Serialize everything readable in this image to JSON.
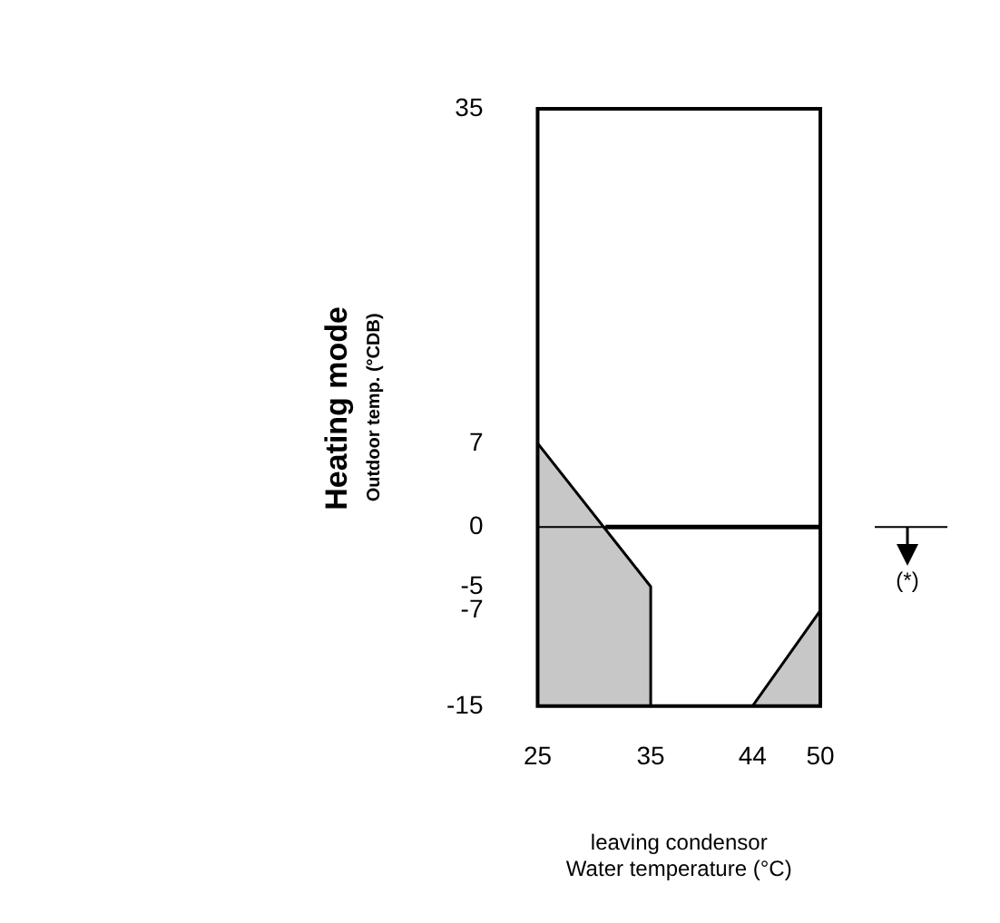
{
  "chart_data": {
    "type": "line",
    "title": "Heating mode",
    "ylabel": "Outdoor temp. (°CDB)",
    "xlabel": "leaving condensor\nWater temperature (°C)",
    "xlim": [
      25,
      50
    ],
    "ylim": [
      -15,
      35
    ],
    "xticks": [
      25,
      35,
      44,
      50
    ],
    "yticks": [
      35,
      7,
      0,
      -5,
      -7,
      -15
    ],
    "marker": "none",
    "series": [
      {
        "type": "area",
        "color": "#000000",
        "x": [
          25,
          25,
          35,
          35
        ],
        "values": [
          -15,
          7,
          -5,
          -15
        ]
      },
      {
        "type": "area",
        "color": "#000000",
        "x": [
          44,
          50,
          50
        ],
        "values": [
          -15,
          -7,
          -15
        ]
      },
      {
        "color": "#000000",
        "x": [
          31,
          50
        ],
        "values": [
          0,
          0
        ]
      }
    ],
    "ref_lines": [
      {
        "axis": "y",
        "value": 0,
        "label": "(*)"
      }
    ]
  }
}
